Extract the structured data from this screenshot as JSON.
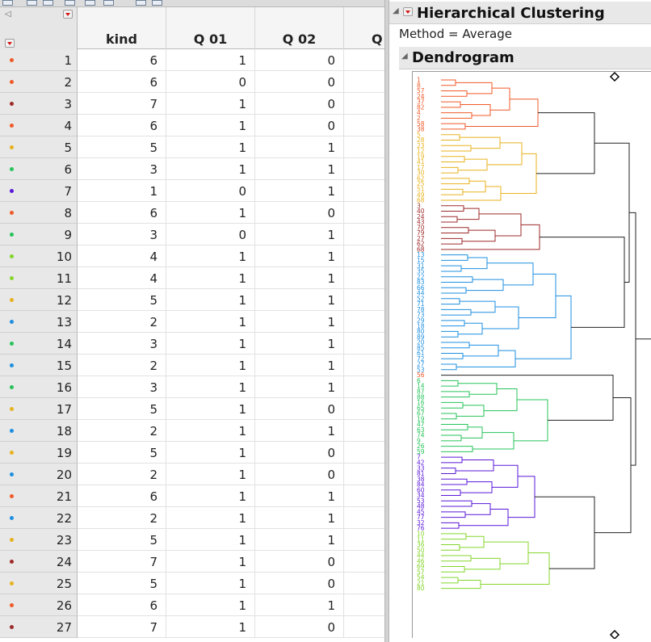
{
  "table": {
    "columns": [
      "kind",
      "Q 01",
      "Q 02",
      "Q"
    ],
    "rows": [
      {
        "num": "1",
        "kind": "6",
        "q01": "1",
        "q02": "0",
        "color": "#f05a28"
      },
      {
        "num": "2",
        "kind": "6",
        "q01": "0",
        "q02": "0",
        "color": "#f05a28"
      },
      {
        "num": "3",
        "kind": "7",
        "q01": "1",
        "q02": "0",
        "color": "#9e2a2a"
      },
      {
        "num": "4",
        "kind": "6",
        "q01": "1",
        "q02": "0",
        "color": "#f05a28"
      },
      {
        "num": "5",
        "kind": "5",
        "q01": "1",
        "q02": "1",
        "color": "#e8b21e"
      },
      {
        "num": "6",
        "kind": "3",
        "q01": "1",
        "q02": "1",
        "color": "#27c35a"
      },
      {
        "num": "7",
        "kind": "1",
        "q01": "0",
        "q02": "1",
        "color": "#5a18d8"
      },
      {
        "num": "8",
        "kind": "6",
        "q01": "1",
        "q02": "0",
        "color": "#f05a28"
      },
      {
        "num": "9",
        "kind": "3",
        "q01": "0",
        "q02": "1",
        "color": "#27c35a"
      },
      {
        "num": "10",
        "kind": "4",
        "q01": "1",
        "q02": "1",
        "color": "#84d62c"
      },
      {
        "num": "11",
        "kind": "4",
        "q01": "1",
        "q02": "1",
        "color": "#84d62c"
      },
      {
        "num": "12",
        "kind": "5",
        "q01": "1",
        "q02": "1",
        "color": "#e8b21e"
      },
      {
        "num": "13",
        "kind": "2",
        "q01": "1",
        "q02": "1",
        "color": "#1e8fe0"
      },
      {
        "num": "14",
        "kind": "3",
        "q01": "1",
        "q02": "1",
        "color": "#27c35a"
      },
      {
        "num": "15",
        "kind": "2",
        "q01": "1",
        "q02": "1",
        "color": "#1e8fe0"
      },
      {
        "num": "16",
        "kind": "3",
        "q01": "1",
        "q02": "1",
        "color": "#27c35a"
      },
      {
        "num": "17",
        "kind": "5",
        "q01": "1",
        "q02": "0",
        "color": "#e8b21e"
      },
      {
        "num": "18",
        "kind": "2",
        "q01": "1",
        "q02": "1",
        "color": "#1e8fe0"
      },
      {
        "num": "19",
        "kind": "5",
        "q01": "1",
        "q02": "0",
        "color": "#e8b21e"
      },
      {
        "num": "20",
        "kind": "2",
        "q01": "1",
        "q02": "0",
        "color": "#1e8fe0"
      },
      {
        "num": "21",
        "kind": "6",
        "q01": "1",
        "q02": "1",
        "color": "#f05a28"
      },
      {
        "num": "22",
        "kind": "2",
        "q01": "1",
        "q02": "1",
        "color": "#1e8fe0"
      },
      {
        "num": "23",
        "kind": "5",
        "q01": "1",
        "q02": "1",
        "color": "#e8b21e"
      },
      {
        "num": "24",
        "kind": "7",
        "q01": "1",
        "q02": "0",
        "color": "#9e2a2a"
      },
      {
        "num": "25",
        "kind": "5",
        "q01": "1",
        "q02": "0",
        "color": "#e8b21e"
      },
      {
        "num": "26",
        "kind": "6",
        "q01": "1",
        "q02": "1",
        "color": "#f05a28"
      },
      {
        "num": "27",
        "kind": "7",
        "q01": "1",
        "q02": "0",
        "color": "#9e2a2a"
      }
    ]
  },
  "report": {
    "title": "Hierarchical Clustering",
    "method_label": "Method",
    "method_value": "Average",
    "dendrogram_title": "Dendrogram"
  },
  "dendrogram": {
    "clusters": [
      {
        "color": "#f05a28",
        "leaves": [
          "1",
          "8",
          "57",
          "24",
          "37",
          "82",
          "4",
          "2",
          "58",
          "38"
        ]
      },
      {
        "color": "#e8b21e",
        "leaves": [
          "5",
          "28",
          "23",
          "12",
          "19",
          "41",
          "17",
          "30",
          "62",
          "25",
          "51",
          "49",
          "68"
        ]
      },
      {
        "color": "#9e2a2a",
        "leaves": [
          "3",
          "40",
          "24",
          "43",
          "70",
          "79",
          "27",
          "62",
          "68"
        ]
      },
      {
        "color": "#1e8fe0",
        "leaves": [
          "13",
          "15",
          "31",
          "35",
          "22",
          "83",
          "66",
          "44",
          "52",
          "71",
          "78",
          "73",
          "29",
          "18",
          "80",
          "89",
          "20",
          "85",
          "61",
          "72",
          "27",
          "53"
        ]
      },
      {
        "color": "#f05a28",
        "leaves": [
          "56"
        ]
      },
      {
        "color": "#27c35a",
        "leaves": [
          "6",
          "14",
          "87",
          "88",
          "16",
          "65",
          "67",
          "19",
          "47",
          "63",
          "74",
          "9",
          "26",
          "59"
        ]
      },
      {
        "color": "#5a18d8",
        "leaves": [
          "7",
          "42",
          "33",
          "81",
          "38",
          "84",
          "60",
          "34",
          "53",
          "48",
          "45",
          "77",
          "32",
          "76"
        ]
      },
      {
        "color": "#84d62c",
        "leaves": [
          "10",
          "11",
          "36",
          "50",
          "44",
          "46",
          "69",
          "57",
          "54",
          "21",
          "80"
        ]
      }
    ]
  }
}
